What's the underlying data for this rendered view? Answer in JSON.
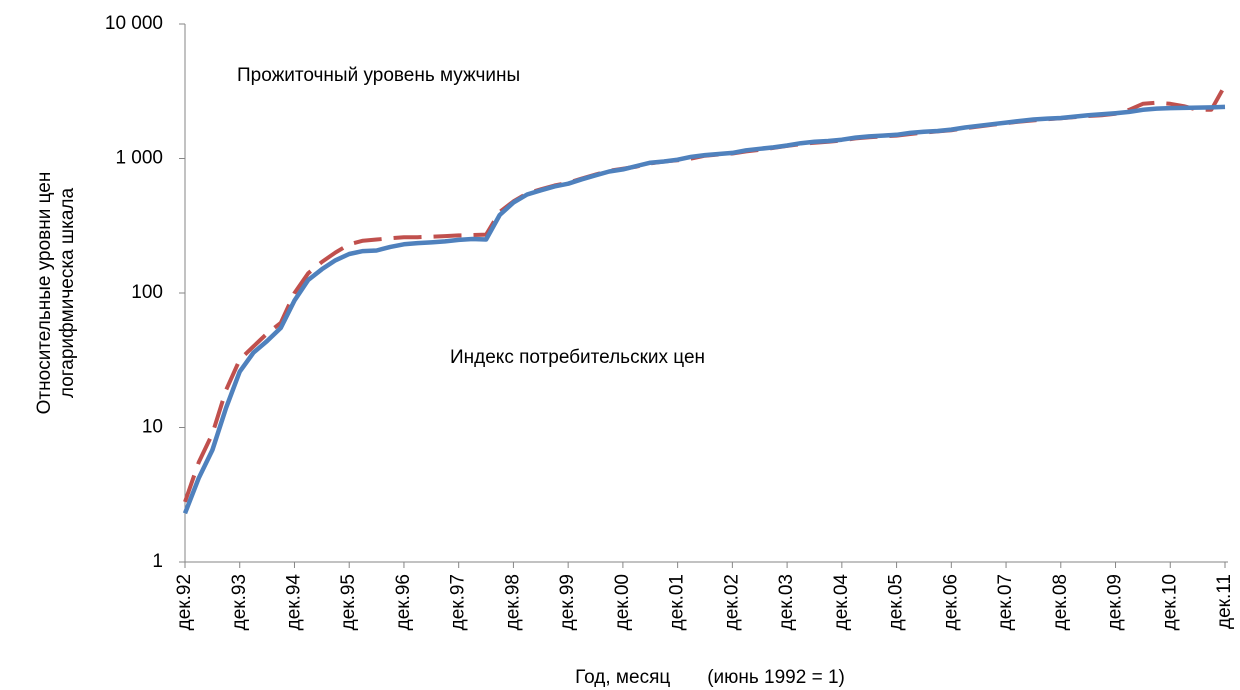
{
  "chart_data": {
    "type": "line",
    "annotations": [
      "Прожиточный уровень мужчины",
      "Индекс потребительских цен"
    ],
    "ylabel": [
      "Относительные уровни цен",
      "логарифмическа шкала"
    ],
    "xlabel": "Год, месяц       (июнь 1992 = 1)",
    "log_y": true,
    "ylim": [
      1,
      10000
    ],
    "yticks": [
      {
        "value": 1,
        "label": "1"
      },
      {
        "value": 10,
        "label": "10"
      },
      {
        "value": 100,
        "label": "100"
      },
      {
        "value": 1000,
        "label": "1 000"
      },
      {
        "value": 10000,
        "label": "10 000"
      }
    ],
    "categories": [
      "дек.92",
      null,
      null,
      null,
      "дек.93",
      null,
      null,
      null,
      "дек.94",
      null,
      null,
      null,
      "дек.95",
      null,
      null,
      null,
      "дек.96",
      null,
      null,
      null,
      "дек.97",
      null,
      null,
      null,
      "дек.98",
      null,
      null,
      null,
      "дек.99",
      null,
      null,
      null,
      "дек.00",
      null,
      null,
      null,
      "дек.01",
      null,
      null,
      null,
      "дек.02",
      null,
      null,
      null,
      "дек.03",
      null,
      null,
      null,
      "дек.04",
      null,
      null,
      null,
      "дек.05",
      null,
      null,
      null,
      "дек.06",
      null,
      null,
      null,
      "дек.07",
      null,
      null,
      null,
      "дек.08",
      null,
      null,
      null,
      "дек.09",
      null,
      null,
      null,
      "дек.10",
      null,
      null,
      null,
      "дек.11"
    ],
    "series": [
      {
        "color": "#c0504d",
        "dashed": true,
        "values": [
          2.8,
          5.5,
          9,
          19,
          32,
          40,
          50,
          60,
          100,
          140,
          170,
          200,
          230,
          245,
          250,
          255,
          260,
          260,
          262,
          265,
          268,
          270,
          272,
          400,
          480,
          550,
          590,
          630,
          660,
          710,
          760,
          810,
          840,
          870,
          920,
          950,
          970,
          1000,
          1050,
          1070,
          1090,
          1130,
          1160,
          1200,
          1240,
          1280,
          1310,
          1330,
          1360,
          1410,
          1440,
          1460,
          1480,
          1520,
          1560,
          1590,
          1620,
          1680,
          1730,
          1780,
          1830,
          1880,
          1920,
          1960,
          1990,
          2030,
          2070,
          2100,
          2150,
          2300,
          2550,
          2600,
          2550,
          2450,
          2300,
          2300,
          3500
        ]
      },
      {
        "color": "#4f81bd",
        "dashed": false,
        "values": [
          2.3,
          4.2,
          6.8,
          14,
          26,
          36,
          44,
          55,
          88,
          125,
          150,
          175,
          195,
          205,
          207,
          220,
          230,
          235,
          238,
          242,
          248,
          252,
          250,
          380,
          470,
          540,
          580,
          620,
          650,
          700,
          750,
          800,
          830,
          880,
          930,
          950,
          980,
          1030,
          1060,
          1080,
          1100,
          1150,
          1180,
          1210,
          1250,
          1300,
          1330,
          1350,
          1380,
          1430,
          1460,
          1480,
          1500,
          1550,
          1580,
          1600,
          1640,
          1700,
          1750,
          1800,
          1850,
          1900,
          1950,
          1980,
          2000,
          2050,
          2100,
          2130,
          2170,
          2220,
          2300,
          2350,
          2370,
          2380,
          2390,
          2400,
          2420
        ]
      }
    ]
  }
}
